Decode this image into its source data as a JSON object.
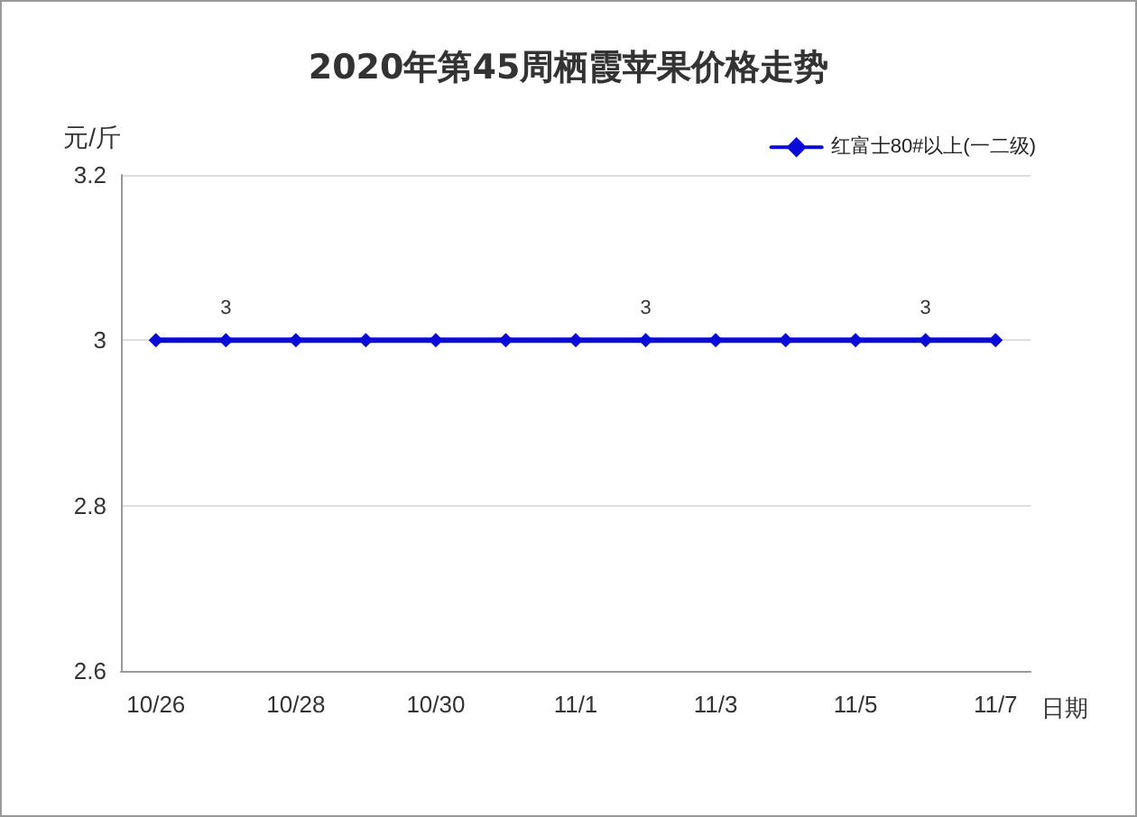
{
  "chart_data": {
    "type": "line",
    "title": "2020年第45周栖霞苹果价格走势",
    "xlabel": "日期",
    "ylabel": "元/斤",
    "categories": [
      "10/26",
      null,
      "10/28",
      null,
      "10/30",
      null,
      "11/1",
      null,
      "11/3",
      null,
      "11/5",
      null,
      "11/7"
    ],
    "series": [
      {
        "name": "红富士80#以上(一二级)",
        "color": "#0a0ad8",
        "values": [
          3,
          3,
          3,
          3,
          3,
          3,
          3,
          3,
          3,
          3,
          3,
          3,
          3
        ],
        "value_labels": [
          null,
          "3",
          null,
          null,
          null,
          null,
          null,
          "3",
          null,
          null,
          null,
          "3",
          null
        ]
      }
    ],
    "ylim": [
      2.6,
      3.2
    ],
    "yticks": [
      2.6,
      2.8,
      3,
      {
        "value": 3.2,
        "label": "3.2"
      }
    ],
    "grid": "y",
    "legend": "top right",
    "marker": "diamond",
    "line_style": "solid"
  }
}
